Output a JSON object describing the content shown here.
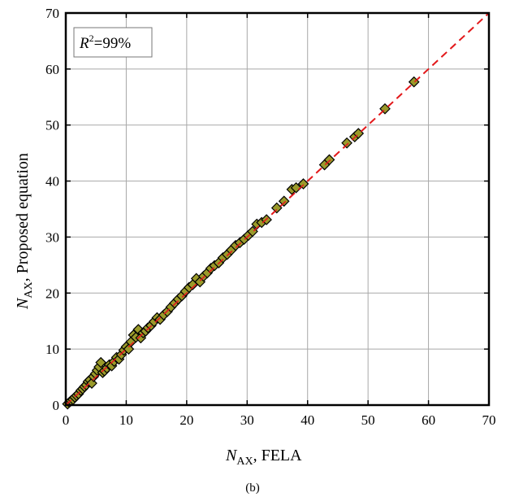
{
  "chart_data": {
    "type": "scatter",
    "xlabel": {
      "symbol": "N",
      "subscript": "AX",
      "suffix": ", FELA"
    },
    "ylabel": {
      "symbol": "N",
      "subscript": "AX",
      "suffix": ", Proposed equation"
    },
    "xlim": [
      0,
      70
    ],
    "ylim": [
      0,
      70
    ],
    "xticks": [
      0,
      10,
      20,
      30,
      40,
      50,
      60,
      70
    ],
    "yticks": [
      0,
      10,
      20,
      30,
      40,
      50,
      60,
      70
    ],
    "grid": true,
    "annotation": {
      "symbol": "R",
      "superscript": "2",
      "value": "=99%"
    },
    "reference_line": {
      "type": "y=x",
      "color": "#e31a1c",
      "style": "dashed"
    },
    "caption": "(b)",
    "marker_color": "#9a9a2a",
    "marker_edge": "#000000",
    "points": [
      [
        0.3,
        0.2
      ],
      [
        0.6,
        0.5
      ],
      [
        0.9,
        0.8
      ],
      [
        1.2,
        1.0
      ],
      [
        1.5,
        1.4
      ],
      [
        1.8,
        1.7
      ],
      [
        2.1,
        2.0
      ],
      [
        2.5,
        2.6
      ],
      [
        2.8,
        2.9
      ],
      [
        3.1,
        3.3
      ],
      [
        3.4,
        3.6
      ],
      [
        3.7,
        4.2
      ],
      [
        4.0,
        4.5
      ],
      [
        4.3,
        3.9
      ],
      [
        4.6,
        5.1
      ],
      [
        4.9,
        5.6
      ],
      [
        5.2,
        6.2
      ],
      [
        5.5,
        6.8
      ],
      [
        5.8,
        7.6
      ],
      [
        6.1,
        5.8
      ],
      [
        6.4,
        6.1
      ],
      [
        6.8,
        6.6
      ],
      [
        7.2,
        7.2
      ],
      [
        7.6,
        7.0
      ],
      [
        8.0,
        7.8
      ],
      [
        8.4,
        8.5
      ],
      [
        8.8,
        8.2
      ],
      [
        9.2,
        9.0
      ],
      [
        9.6,
        9.8
      ],
      [
        10.0,
        10.4
      ],
      [
        10.4,
        10.0
      ],
      [
        10.8,
        11.3
      ],
      [
        11.2,
        12.5
      ],
      [
        11.6,
        12.1
      ],
      [
        12.0,
        13.5
      ],
      [
        12.4,
        12.0
      ],
      [
        12.8,
        12.9
      ],
      [
        13.2,
        13.2
      ],
      [
        13.6,
        13.8
      ],
      [
        14.1,
        14.2
      ],
      [
        14.6,
        14.9
      ],
      [
        15.1,
        15.6
      ],
      [
        15.6,
        15.3
      ],
      [
        16.2,
        16.1
      ],
      [
        16.8,
        16.7
      ],
      [
        17.4,
        17.5
      ],
      [
        18.0,
        18.2
      ],
      [
        18.6,
        18.9
      ],
      [
        19.2,
        19.5
      ],
      [
        19.8,
        20.3
      ],
      [
        20.4,
        21.0
      ],
      [
        21.0,
        21.5
      ],
      [
        21.6,
        22.6
      ],
      [
        22.2,
        22.0
      ],
      [
        22.8,
        23.0
      ],
      [
        23.4,
        23.6
      ],
      [
        24.0,
        24.4
      ],
      [
        24.6,
        24.9
      ],
      [
        25.3,
        25.4
      ],
      [
        26.0,
        26.3
      ],
      [
        26.7,
        26.9
      ],
      [
        27.4,
        27.7
      ],
      [
        28.1,
        28.5
      ],
      [
        28.8,
        29.0
      ],
      [
        29.5,
        29.6
      ],
      [
        30.2,
        30.3
      ],
      [
        30.9,
        31.0
      ],
      [
        31.6,
        32.3
      ],
      [
        32.4,
        32.6
      ],
      [
        33.2,
        33.1
      ],
      [
        34.9,
        35.2
      ],
      [
        36.1,
        36.4
      ],
      [
        37.4,
        38.5
      ],
      [
        38.1,
        38.8
      ],
      [
        39.3,
        39.5
      ],
      [
        42.8,
        42.9
      ],
      [
        43.6,
        43.8
      ],
      [
        46.5,
        46.8
      ],
      [
        47.8,
        47.9
      ],
      [
        48.4,
        48.5
      ],
      [
        52.8,
        52.9
      ],
      [
        57.6,
        57.7
      ]
    ]
  }
}
